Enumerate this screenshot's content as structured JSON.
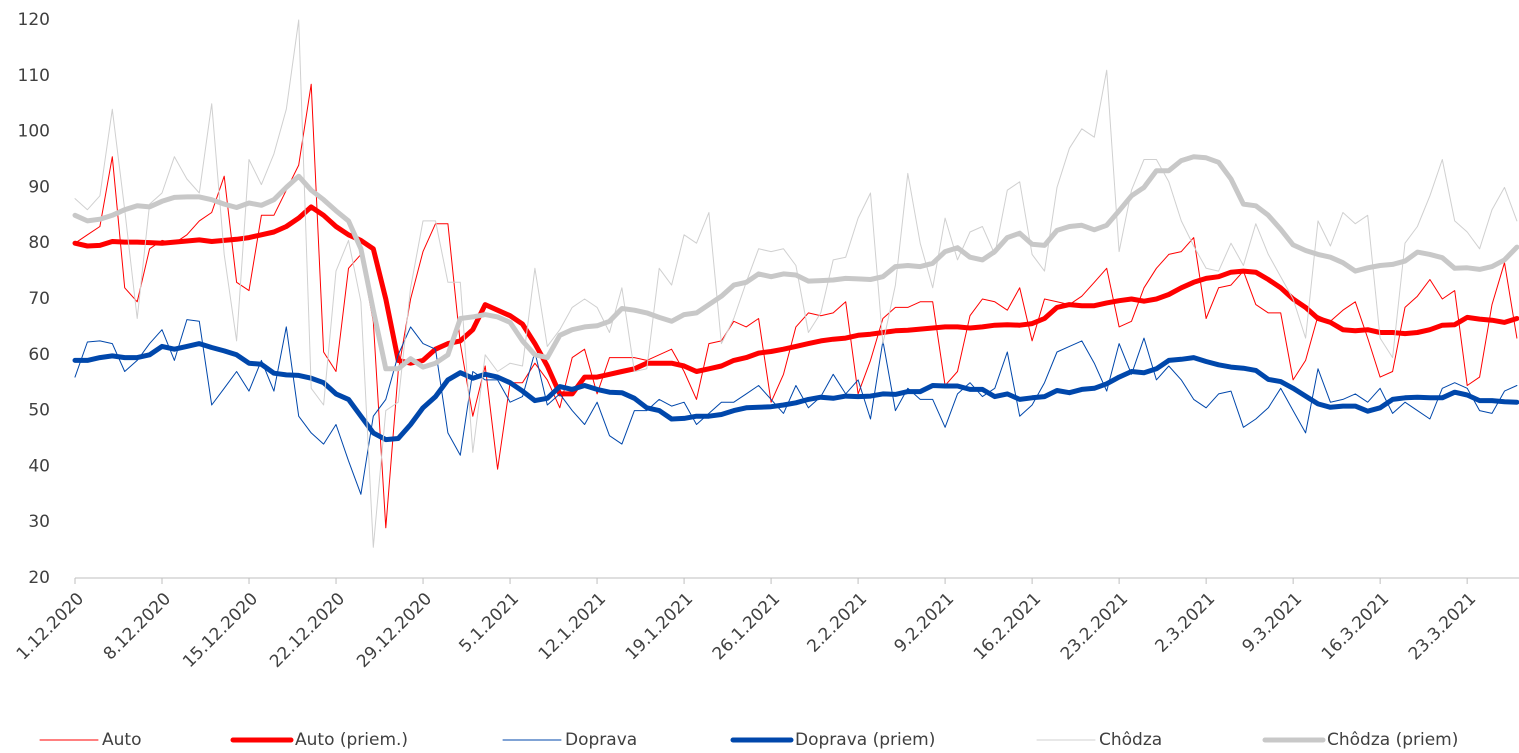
{
  "chart_data": {
    "type": "line",
    "categories": [
      "1.12.2020",
      null,
      null,
      null,
      null,
      null,
      null,
      "8.12.2020",
      null,
      null,
      null,
      null,
      null,
      null,
      "15.12.2020",
      null,
      null,
      null,
      null,
      null,
      null,
      "22.12.2020",
      null,
      null,
      null,
      null,
      null,
      null,
      "29.12.2020",
      null,
      null,
      null,
      null,
      null,
      null,
      "5.1.2021",
      null,
      null,
      null,
      null,
      null,
      null,
      "12.1.2021",
      null,
      null,
      null,
      null,
      null,
      null,
      "19.1.2021",
      null,
      null,
      null,
      null,
      null,
      null,
      "26.1.2021",
      null,
      null,
      null,
      null,
      null,
      null,
      "2.2.2021",
      null,
      null,
      null,
      null,
      null,
      null,
      "9.2.2021",
      null,
      null,
      null,
      null,
      null,
      null,
      "16.2.2021",
      null,
      null,
      null,
      null,
      null,
      null,
      "23.2.2021",
      null,
      null,
      null,
      null,
      null,
      null,
      "2.3.2021",
      null,
      null,
      null,
      null,
      null,
      null,
      "9.3.2021",
      null,
      null,
      null,
      null,
      null,
      null,
      "16.3.2021",
      null,
      null,
      null,
      null,
      null,
      null,
      "23.3.2021",
      null,
      null,
      null,
      null
    ],
    "ylim": [
      20,
      120
    ],
    "yticks": [
      20,
      30,
      40,
      50,
      60,
      70,
      80,
      90,
      100,
      110,
      120
    ],
    "grid": false,
    "series": [
      {
        "name": "Auto",
        "color": "#ff0000",
        "line_width": 1,
        "values": [
          80,
          81.5,
          83,
          95.5,
          72,
          69.5,
          79,
          80.5,
          80,
          81.5,
          84,
          85.5,
          92,
          73,
          71.5,
          85,
          85,
          89.5,
          94,
          108.5,
          60.5,
          57,
          75.5,
          78,
          66,
          29,
          57,
          70,
          78.5,
          83.5,
          83.5,
          62,
          49,
          58,
          39.5,
          55,
          55,
          58.5,
          55.5,
          50.5,
          59.5,
          61,
          53,
          59.5,
          59.5,
          59.5,
          59,
          60,
          61,
          57,
          52,
          62,
          62.5,
          66,
          65,
          66.5,
          51.5,
          56.5,
          65,
          67.5,
          67,
          67.5,
          69.5,
          53,
          59,
          66.5,
          68.5,
          68.5,
          69.5,
          69.5,
          54.5,
          57,
          67,
          70,
          69.5,
          68,
          72,
          62.5,
          70,
          69.5,
          69,
          70.5,
          73,
          75.5,
          65,
          66,
          72,
          75.5,
          78,
          78.5,
          81,
          66.5,
          72,
          72.5,
          75,
          69,
          67.5,
          67.5,
          55.5,
          59,
          67,
          66,
          68,
          69.5,
          63,
          56,
          57,
          68.5,
          70.5,
          73.5,
          70,
          71.5,
          54.5,
          56,
          69,
          76.5,
          63
        ]
      },
      {
        "name": "Auto (priem.)",
        "color": "#ff0000",
        "line_width": 5,
        "values": [
          80,
          79.5,
          79.6,
          80.3,
          80.2,
          80.2,
          80.1,
          80,
          80.2,
          80.4,
          80.6,
          80.3,
          80.5,
          80.7,
          81,
          81.5,
          82,
          83,
          84.5,
          86.5,
          85,
          83,
          81.5,
          80.5,
          79,
          70,
          59,
          58.5,
          59,
          61,
          62,
          62.5,
          64.5,
          69,
          68,
          67,
          65.5,
          62,
          58,
          53,
          53,
          56,
          56,
          56.5,
          57,
          57.5,
          58.5,
          58.5,
          58.5,
          58,
          57,
          57.5,
          58,
          59,
          59.5,
          60.3,
          60.6,
          61,
          61.5,
          62,
          62.5,
          62.8,
          63,
          63.5,
          63.7,
          64,
          64.3,
          64.4,
          64.6,
          64.8,
          65,
          65,
          64.8,
          65,
          65.3,
          65.4,
          65.3,
          65.6,
          66.5,
          68.5,
          69,
          68.8,
          68.8,
          69.3,
          69.7,
          70,
          69.6,
          70,
          70.8,
          72,
          73,
          73.7,
          74,
          74.8,
          75,
          74.8,
          73.5,
          72,
          70,
          68.5,
          66.5,
          65.8,
          64.5,
          64.3,
          64.5,
          64,
          64,
          63.8,
          64,
          64.5,
          65.3,
          65.4,
          66.7,
          66.4,
          66.2,
          65.8,
          66.5
        ]
      },
      {
        "name": "Doprava",
        "color": "#0047ab",
        "line_width": 1,
        "values": [
          56,
          62.3,
          62.5,
          62,
          57,
          59,
          62,
          64.5,
          59,
          66.3,
          66,
          51,
          54,
          57,
          53.5,
          59,
          53.5,
          65,
          49,
          46,
          44,
          47.5,
          41,
          35,
          49,
          52,
          60,
          65,
          62,
          61,
          46,
          42,
          57,
          55.5,
          55.5,
          51.5,
          52.5,
          60.5,
          51,
          53,
          50,
          47.5,
          51.5,
          45.5,
          44,
          50,
          50,
          52,
          50.8,
          51.5,
          47.5,
          49.5,
          51.5,
          51.5,
          53,
          54.5,
          52,
          49.5,
          54.5,
          50.5,
          52.5,
          56.5,
          53,
          55.5,
          48.5,
          62.5,
          50,
          54,
          52,
          52,
          47,
          53,
          55,
          52.5,
          54,
          60.5,
          49,
          51,
          55,
          60.5,
          61.5,
          62.5,
          58.5,
          53.5,
          62,
          56.5,
          63,
          55.5,
          58,
          55.5,
          52,
          50.5,
          53,
          53.5,
          47,
          48.5,
          50.5,
          54,
          50,
          46,
          57.5,
          51.5,
          52,
          53,
          51.5,
          54,
          49.5,
          51.5,
          50,
          48.5,
          54,
          55,
          54,
          50,
          49.5,
          53.5,
          54.5
        ]
      },
      {
        "name": "Doprava (priem)",
        "color": "#0047ab",
        "line_width": 5,
        "values": [
          59,
          59,
          59.5,
          59.8,
          59.5,
          59.5,
          60,
          61.5,
          61,
          61.5,
          62,
          61.3,
          60.7,
          60,
          58.5,
          58.3,
          56.7,
          56.4,
          56.3,
          55.8,
          55,
          53,
          52,
          49,
          46,
          44.8,
          45,
          47.5,
          50.5,
          52.5,
          55.5,
          56.8,
          55.8,
          56.5,
          56,
          55,
          53.5,
          51.8,
          52.2,
          54.3,
          53.8,
          54.5,
          53.8,
          53.3,
          53.2,
          52.2,
          50.5,
          50,
          48.5,
          48.6,
          49,
          49,
          49.3,
          50,
          50.5,
          50.6,
          50.7,
          51,
          51.4,
          52,
          52.4,
          52.2,
          52.6,
          52.5,
          52.6,
          53,
          52.9,
          53.4,
          53.4,
          54.5,
          54.4,
          54.4,
          53.8,
          53.8,
          52.5,
          53,
          52,
          52.3,
          52.5,
          53.6,
          53.2,
          53.8,
          54,
          54.8,
          56,
          57,
          56.8,
          57.5,
          59,
          59.2,
          59.5,
          58.8,
          58.2,
          57.8,
          57.6,
          57.2,
          55.6,
          55.2,
          54,
          52.6,
          51.2,
          50.6,
          50.8,
          50.8,
          49.9,
          50.5,
          52,
          52.3,
          52.4,
          52.3,
          52.3,
          53.3,
          52.8,
          51.8,
          51.8,
          51.6,
          51.5
        ]
      },
      {
        "name": "Chôdza",
        "color": "#d0d0d0",
        "line_width": 1,
        "values": [
          88,
          86,
          88.5,
          104,
          86,
          66.5,
          87,
          89,
          95.5,
          91.5,
          89,
          105,
          78,
          62.5,
          95,
          90.5,
          96,
          104,
          120,
          54,
          51,
          75,
          80.5,
          69.5,
          25.5,
          50,
          51.5,
          72,
          84,
          84,
          73,
          73,
          42.5,
          60,
          57,
          58.5,
          58,
          75.5,
          61.5,
          64.5,
          68.5,
          70,
          68.5,
          64,
          72,
          57,
          57.5,
          75.5,
          72.5,
          81.5,
          80,
          85.5,
          62,
          66.5,
          73,
          79,
          78.5,
          79,
          76,
          64,
          67.5,
          77,
          77.5,
          84.5,
          89,
          62,
          72.5,
          92.5,
          80,
          72,
          84.5,
          77,
          82,
          83,
          78,
          89.5,
          91,
          78,
          75,
          90,
          97,
          100.5,
          99,
          111,
          78.5,
          89.5,
          95,
          95,
          91,
          84,
          79.5,
          75.5,
          75,
          80,
          76,
          83.5,
          78,
          74,
          70,
          63,
          84,
          79.5,
          85.5,
          83.5,
          85,
          63,
          59.5,
          80,
          83,
          88.5,
          95,
          84,
          82,
          79,
          86,
          90,
          84
        ]
      },
      {
        "name": "Chôdza (priem)",
        "color": "#c8c8c8",
        "line_width": 5,
        "values": [
          85,
          84,
          84.3,
          85,
          86,
          86.7,
          86.5,
          87.5,
          88.2,
          88.3,
          88.3,
          87.8,
          87,
          86.4,
          87.2,
          86.8,
          87.8,
          90,
          92,
          89.5,
          87.8,
          85.8,
          84,
          79,
          68,
          57.5,
          57.5,
          59.3,
          57.8,
          58.5,
          60,
          66.5,
          66.8,
          67.2,
          66.8,
          65.8,
          62.5,
          60,
          59.5,
          63.5,
          64.5,
          65,
          65.2,
          66,
          68.3,
          68,
          67.5,
          66.7,
          66,
          67.2,
          67.5,
          69,
          70.5,
          72.5,
          73,
          74.5,
          74,
          74.5,
          74.3,
          73.2,
          73.3,
          73.4,
          73.7,
          73.6,
          73.5,
          74,
          75.8,
          76,
          75.8,
          76.4,
          78.5,
          79.2,
          77.5,
          77,
          78.5,
          81,
          81.8,
          79.8,
          79.6,
          82.3,
          83,
          83.2,
          82.4,
          83.2,
          85.8,
          88.5,
          90,
          93,
          93,
          94.8,
          95.5,
          95.3,
          94.5,
          91.5,
          87,
          86.7,
          85,
          82.5,
          79.7,
          78.7,
          78,
          77.5,
          76.5,
          75,
          75.6,
          76,
          76.2,
          76.8,
          78.4,
          78,
          77.4,
          75.5,
          75.6,
          75.3,
          75.8,
          77,
          79.3
        ]
      }
    ]
  }
}
